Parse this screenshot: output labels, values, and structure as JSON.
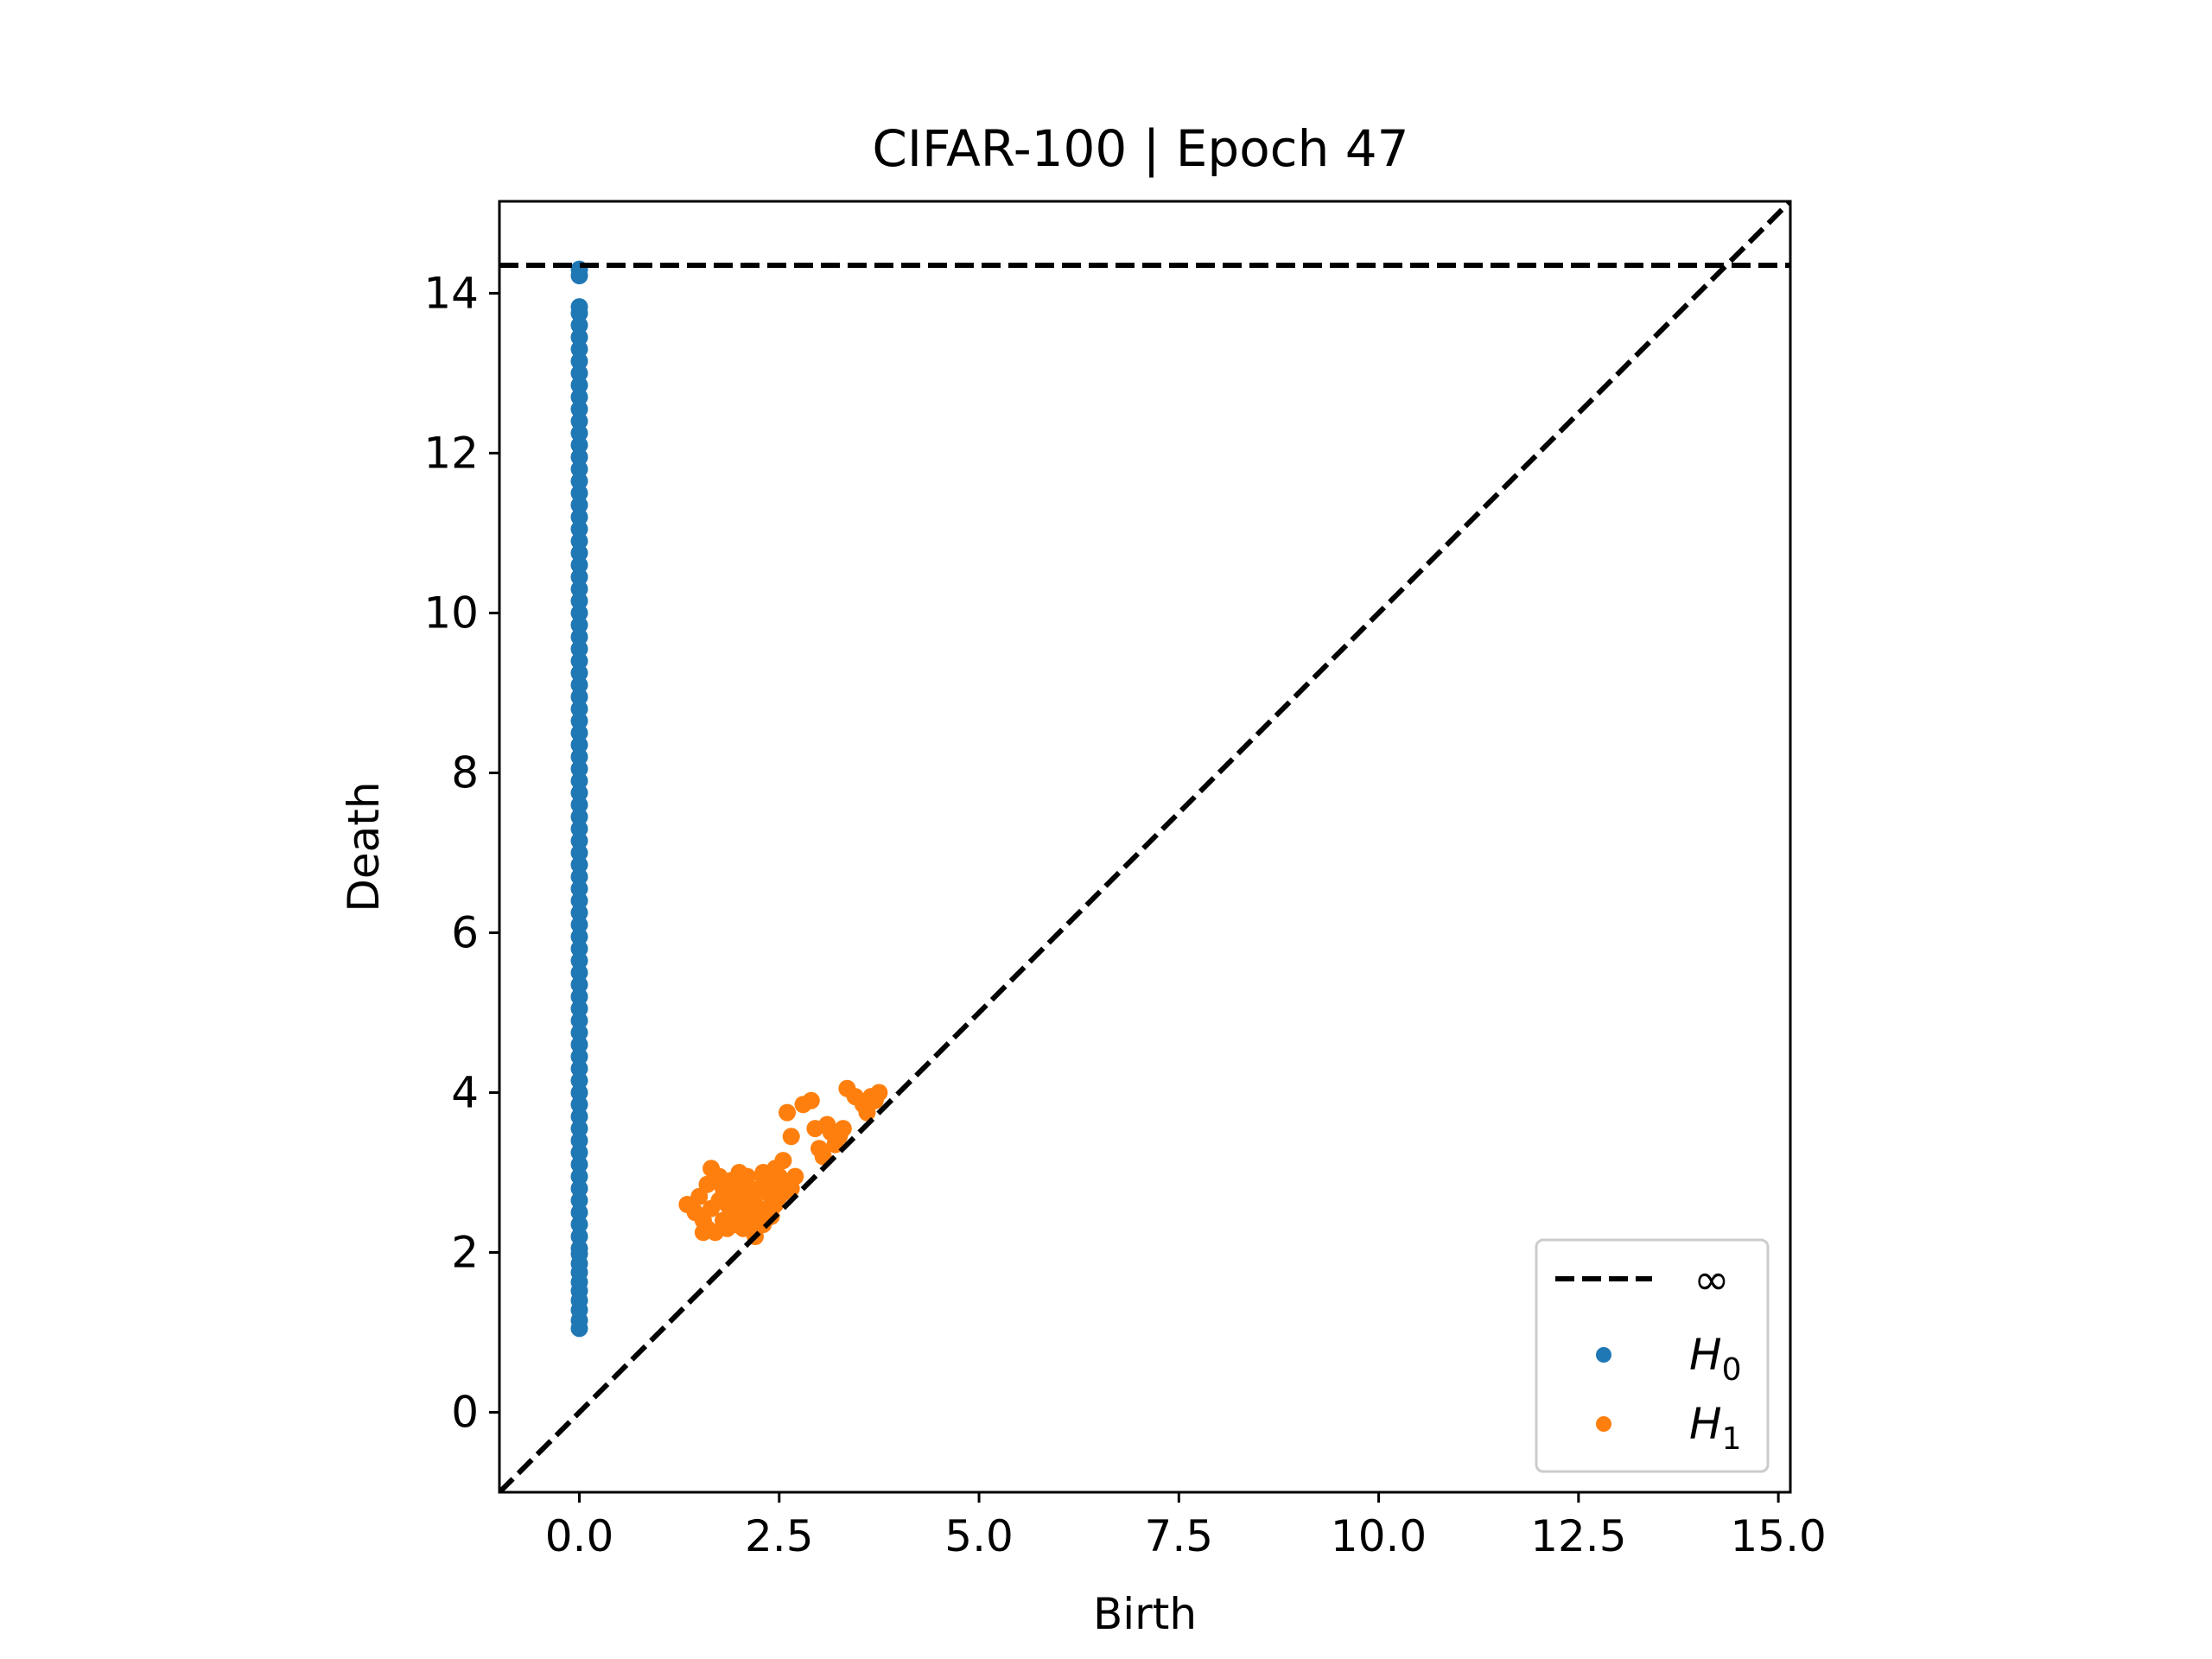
{
  "chart_data": {
    "type": "scatter",
    "title": "CIFAR-100 | Epoch 47",
    "xlabel": "Birth",
    "ylabel": "Death",
    "xlim": [
      -1.0,
      15.15
    ],
    "ylim": [
      -1.0,
      15.15
    ],
    "xticks": [
      0.0,
      2.5,
      5.0,
      7.5,
      10.0,
      12.5,
      15.0
    ],
    "xtick_labels": [
      "0.0",
      "2.5",
      "5.0",
      "7.5",
      "10.0",
      "12.5",
      "15.0"
    ],
    "yticks": [
      0,
      2,
      4,
      6,
      8,
      10,
      12,
      14
    ],
    "ytick_labels": [
      "0",
      "2",
      "4",
      "6",
      "8",
      "10",
      "12",
      "14"
    ],
    "grid": false,
    "legend_position": "bottom-right",
    "infinity_line": {
      "label": "∞",
      "y": 14.35,
      "color": "#000000",
      "style": "dashed"
    },
    "diagonal": {
      "from": [
        -1.0,
        -1.0
      ],
      "to": [
        15.15,
        15.15
      ],
      "color": "#000000",
      "style": "dashed"
    },
    "series": [
      {
        "name": "H",
        "subscript": "0",
        "color": "#1f77b4",
        "points": [
          [
            0,
            1.05
          ],
          [
            0,
            1.15
          ],
          [
            0,
            1.28
          ],
          [
            0,
            1.4
          ],
          [
            0,
            1.52
          ],
          [
            0,
            1.63
          ],
          [
            0,
            1.75
          ],
          [
            0,
            1.86
          ],
          [
            0,
            1.98
          ],
          [
            0,
            2.05
          ],
          [
            0,
            2.2
          ],
          [
            0,
            2.35
          ],
          [
            0,
            2.5
          ],
          [
            0,
            2.65
          ],
          [
            0,
            2.8
          ],
          [
            0,
            2.95
          ],
          [
            0,
            3.1
          ],
          [
            0,
            3.25
          ],
          [
            0,
            3.4
          ],
          [
            0,
            3.55
          ],
          [
            0,
            3.7
          ],
          [
            0,
            3.85
          ],
          [
            0,
            4.0
          ],
          [
            0,
            4.15
          ],
          [
            0,
            4.3
          ],
          [
            0,
            4.45
          ],
          [
            0,
            4.6
          ],
          [
            0,
            4.75
          ],
          [
            0,
            4.9
          ],
          [
            0,
            5.05
          ],
          [
            0,
            5.2
          ],
          [
            0,
            5.35
          ],
          [
            0,
            5.5
          ],
          [
            0,
            5.65
          ],
          [
            0,
            5.8
          ],
          [
            0,
            5.95
          ],
          [
            0,
            6.1
          ],
          [
            0,
            6.25
          ],
          [
            0,
            6.4
          ],
          [
            0,
            6.55
          ],
          [
            0,
            6.7
          ],
          [
            0,
            6.85
          ],
          [
            0,
            7.0
          ],
          [
            0,
            7.15
          ],
          [
            0,
            7.3
          ],
          [
            0,
            7.45
          ],
          [
            0,
            7.6
          ],
          [
            0,
            7.75
          ],
          [
            0,
            7.9
          ],
          [
            0,
            8.05
          ],
          [
            0,
            8.2
          ],
          [
            0,
            8.35
          ],
          [
            0,
            8.5
          ],
          [
            0,
            8.65
          ],
          [
            0,
            8.8
          ],
          [
            0,
            8.95
          ],
          [
            0,
            9.1
          ],
          [
            0,
            9.25
          ],
          [
            0,
            9.4
          ],
          [
            0,
            9.55
          ],
          [
            0,
            9.7
          ],
          [
            0,
            9.85
          ],
          [
            0,
            10.0
          ],
          [
            0,
            10.15
          ],
          [
            0,
            10.3
          ],
          [
            0,
            10.45
          ],
          [
            0,
            10.6
          ],
          [
            0,
            10.75
          ],
          [
            0,
            10.9
          ],
          [
            0,
            11.05
          ],
          [
            0,
            11.2
          ],
          [
            0,
            11.35
          ],
          [
            0,
            11.5
          ],
          [
            0,
            11.65
          ],
          [
            0,
            11.8
          ],
          [
            0,
            11.95
          ],
          [
            0,
            12.1
          ],
          [
            0,
            12.25
          ],
          [
            0,
            12.4
          ],
          [
            0,
            12.55
          ],
          [
            0,
            12.7
          ],
          [
            0,
            12.85
          ],
          [
            0,
            13.0
          ],
          [
            0,
            13.15
          ],
          [
            0,
            13.3
          ],
          [
            0,
            13.45
          ],
          [
            0,
            13.6
          ],
          [
            0,
            13.75
          ],
          [
            0,
            13.83
          ],
          [
            0,
            14.22
          ],
          [
            0,
            14.3
          ]
        ]
      },
      {
        "name": "H",
        "subscript": "1",
        "color": "#ff7f0e",
        "points": [
          [
            1.35,
            2.6
          ],
          [
            1.45,
            2.5
          ],
          [
            1.5,
            2.7
          ],
          [
            1.55,
            2.4
          ],
          [
            1.6,
            2.3
          ],
          [
            1.6,
            2.85
          ],
          [
            1.65,
            2.55
          ],
          [
            1.7,
            2.25
          ],
          [
            1.7,
            2.95
          ],
          [
            1.75,
            2.65
          ],
          [
            1.8,
            2.4
          ],
          [
            1.8,
            2.8
          ],
          [
            1.85,
            2.3
          ],
          [
            1.85,
            2.6
          ],
          [
            1.9,
            2.5
          ],
          [
            1.9,
            2.9
          ],
          [
            1.95,
            2.35
          ],
          [
            1.95,
            2.75
          ],
          [
            2.0,
            2.45
          ],
          [
            2.0,
            2.65
          ],
          [
            2.05,
            2.3
          ],
          [
            2.05,
            2.85
          ],
          [
            2.1,
            2.55
          ],
          [
            2.1,
            2.95
          ],
          [
            2.15,
            2.4
          ],
          [
            2.15,
            2.7
          ],
          [
            2.2,
            2.3
          ],
          [
            2.2,
            2.6
          ],
          [
            2.25,
            2.8
          ],
          [
            2.25,
            2.45
          ],
          [
            2.3,
            2.35
          ],
          [
            2.3,
            2.95
          ],
          [
            2.35,
            2.55
          ],
          [
            2.35,
            2.75
          ],
          [
            2.4,
            2.45
          ],
          [
            2.4,
            2.85
          ],
          [
            2.45,
            2.6
          ],
          [
            2.5,
            2.7
          ],
          [
            2.5,
            2.95
          ],
          [
            2.55,
            2.75
          ],
          [
            2.6,
            2.85
          ],
          [
            2.65,
            2.8
          ],
          [
            2.7,
            2.95
          ],
          [
            1.65,
            3.05
          ],
          [
            2.0,
            3.0
          ],
          [
            2.3,
            3.0
          ],
          [
            1.55,
            2.25
          ],
          [
            1.75,
            2.95
          ],
          [
            2.2,
            2.2
          ],
          [
            2.45,
            3.05
          ],
          [
            2.55,
            3.15
          ],
          [
            2.65,
            3.45
          ],
          [
            2.6,
            3.75
          ],
          [
            2.8,
            3.85
          ],
          [
            2.9,
            3.9
          ],
          [
            2.95,
            3.55
          ],
          [
            3.0,
            3.3
          ],
          [
            3.05,
            3.2
          ],
          [
            3.1,
            3.6
          ],
          [
            3.15,
            3.5
          ],
          [
            3.2,
            3.35
          ],
          [
            3.25,
            3.45
          ],
          [
            3.3,
            3.55
          ],
          [
            3.35,
            4.05
          ],
          [
            3.45,
            3.95
          ],
          [
            3.55,
            3.85
          ],
          [
            3.6,
            3.75
          ],
          [
            3.65,
            3.95
          ],
          [
            3.75,
            4.0
          ],
          [
            3.7,
            3.9
          ]
        ]
      }
    ]
  }
}
